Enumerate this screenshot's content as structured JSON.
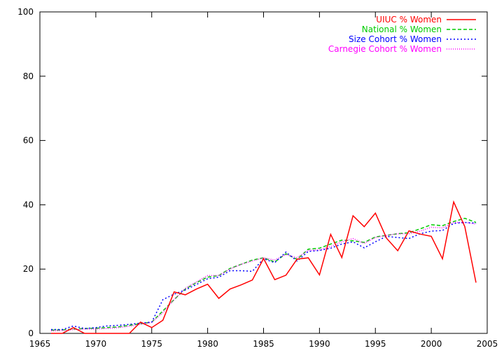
{
  "chart_data": {
    "type": "line",
    "xlim": [
      1965,
      2005
    ],
    "ylim": [
      0,
      100
    ],
    "xticks": [
      1965,
      1970,
      1975,
      1980,
      1985,
      1990,
      1995,
      2000,
      2005
    ],
    "yticks": [
      0,
      20,
      40,
      60,
      80,
      100
    ],
    "grid": false,
    "legend_position": "top-right",
    "series": [
      {
        "name": "UIUC % Women",
        "color": "#ff0000",
        "style": "solid",
        "x": [
          1966,
          1967,
          1968,
          1969,
          1970,
          1971,
          1972,
          1973,
          1974,
          1975,
          1976,
          1977,
          1978,
          1979,
          1980,
          1981,
          1982,
          1983,
          1984,
          1985,
          1986,
          1987,
          1988,
          1989,
          1990,
          1991,
          1992,
          1993,
          1994,
          1995,
          1996,
          1997,
          1998,
          1999,
          2000,
          2001,
          2002,
          2003,
          2004
        ],
        "y": [
          0,
          0,
          1.8,
          0,
          0,
          0,
          0,
          0,
          3.5,
          1.8,
          4.1,
          12.9,
          12.0,
          13.8,
          15.3,
          10.9,
          13.8,
          15.1,
          16.6,
          23.3,
          16.7,
          18.1,
          23.1,
          23.5,
          18.2,
          30.8,
          23.6,
          36.6,
          33.2,
          37.4,
          29.6,
          25.7,
          31.9,
          30.9,
          30.2,
          23.2,
          40.9,
          33.2,
          15.8
        ]
      },
      {
        "name": "National % Women",
        "color": "#00cc00",
        "style": "dashed",
        "x": [
          1966,
          1967,
          1968,
          1969,
          1970,
          1971,
          1972,
          1973,
          1974,
          1975,
          1976,
          1977,
          1978,
          1979,
          1980,
          1981,
          1982,
          1983,
          1984,
          1985,
          1986,
          1987,
          1988,
          1989,
          1990,
          1991,
          1992,
          1993,
          1994,
          1995,
          1996,
          1997,
          1998,
          1999,
          2000,
          2001,
          2002,
          2003,
          2004
        ],
        "y": [
          1.0,
          1.1,
          1.3,
          1.5,
          1.6,
          1.8,
          2.0,
          2.5,
          3.0,
          3.5,
          7.0,
          10.5,
          13.8,
          15.8,
          17.5,
          18.0,
          20.2,
          21.5,
          22.8,
          23.5,
          22.2,
          24.8,
          23.0,
          26.2,
          26.5,
          27.8,
          29.0,
          28.8,
          28.3,
          30.0,
          30.5,
          31.0,
          31.3,
          32.5,
          33.8,
          33.5,
          34.8,
          35.8,
          34.5
        ]
      },
      {
        "name": "Size Cohort % Women",
        "color": "#0000ff",
        "style": "dotted",
        "x": [
          1966,
          1967,
          1968,
          1969,
          1970,
          1971,
          1972,
          1973,
          1974,
          1975,
          1976,
          1977,
          1978,
          1979,
          1980,
          1981,
          1982,
          1983,
          1984,
          1985,
          1986,
          1987,
          1988,
          1989,
          1990,
          1991,
          1992,
          1993,
          1994,
          1995,
          1996,
          1997,
          1998,
          1999,
          2000,
          2001,
          2002,
          2003,
          2004
        ],
        "y": [
          1.2,
          1.2,
          2.3,
          1.5,
          1.8,
          2.3,
          2.5,
          2.8,
          3.2,
          3.5,
          10.5,
          12.2,
          13.5,
          15.2,
          17.0,
          17.5,
          19.5,
          19.5,
          19.3,
          23.2,
          22.0,
          25.3,
          22.5,
          25.5,
          25.8,
          26.5,
          27.8,
          28.5,
          26.6,
          28.5,
          30.2,
          29.8,
          29.5,
          31.0,
          31.8,
          32.0,
          34.2,
          34.5,
          34.3
        ]
      },
      {
        "name": "Carnegie Cohort % Women",
        "color": "#ff00ff",
        "style": "dotted-fine",
        "x": [
          1966,
          1967,
          1968,
          1969,
          1970,
          1971,
          1972,
          1973,
          1974,
          1975,
          1976,
          1977,
          1978,
          1979,
          1980,
          1981,
          1982,
          1983,
          1984,
          1985,
          1986,
          1987,
          1988,
          1989,
          1990,
          1991,
          1992,
          1993,
          1994,
          1995,
          1996,
          1997,
          1998,
          1999,
          2000,
          2001,
          2002,
          2003,
          2004
        ],
        "y": [
          0.8,
          0.9,
          1.2,
          1.3,
          1.4,
          1.5,
          1.8,
          2.2,
          2.8,
          3.4,
          6.5,
          10.5,
          14.0,
          16.0,
          18.0,
          18.0,
          20.0,
          21.5,
          22.5,
          23.5,
          22.8,
          24.5,
          23.5,
          25.8,
          26.0,
          27.0,
          28.5,
          29.5,
          28.0,
          29.8,
          30.5,
          31.0,
          31.0,
          31.8,
          33.0,
          32.8,
          34.5,
          34.5,
          34.0
        ]
      }
    ]
  }
}
